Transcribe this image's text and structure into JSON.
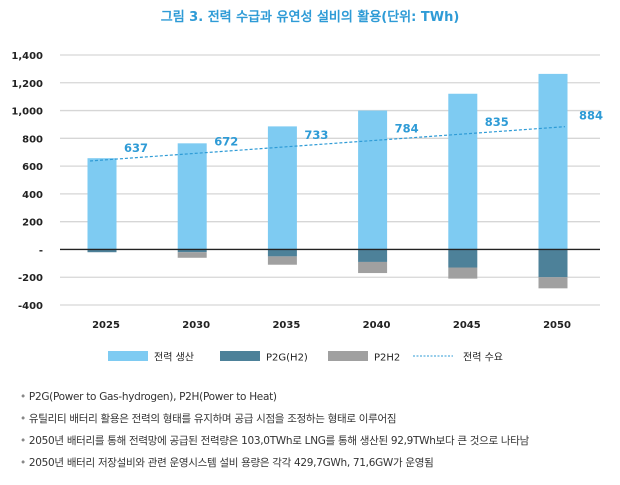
{
  "chart_data": {
    "type": "bar",
    "title": "그림 3. 전력 수급과 유연성 설비의 활용(단위: TWh)",
    "xlabel": "",
    "ylabel": "",
    "ylim": [
      -400,
      1400
    ],
    "yticks": [
      1400,
      1200,
      1000,
      800,
      600,
      400,
      200,
      0,
      -200,
      -400
    ],
    "ytick_labels": [
      "1,400",
      "1,200",
      "1,000",
      "800",
      "600",
      "400",
      "200",
      "-",
      "-200",
      "-400"
    ],
    "grid": true,
    "categories": [
      "2025",
      "2030",
      "2035",
      "2040",
      "2045",
      "2050"
    ],
    "series": [
      {
        "name": "전력 생산",
        "kind": "bar",
        "color": "#7ecbf2",
        "values": [
          657,
          764,
          886,
          1000,
          1121,
          1264
        ]
      },
      {
        "name": "P2G(H2)",
        "kind": "bar-negative-stacked",
        "color": "#4d8199",
        "values": [
          -20,
          -20,
          -50,
          -90,
          -130,
          -200
        ]
      },
      {
        "name": "P2H2",
        "kind": "bar-negative-stacked",
        "color": "#a0a0a0",
        "values": [
          0,
          -40,
          -60,
          -80,
          -80,
          -80
        ]
      },
      {
        "name": "전력 수요",
        "kind": "line-dashed",
        "color": "#2e9bd6",
        "values": [
          637,
          672,
          733,
          784,
          835,
          884
        ]
      }
    ],
    "data_labels": [
      "637",
      "672",
      "733",
      "784",
      "835",
      "884"
    ],
    "legend": [
      "전력 생산",
      "P2G(H2)",
      "P2H2",
      "전력 수요"
    ],
    "legend_position": "bottom"
  },
  "notes": [
    "P2G(Power to Gas-hydrogen), P2H(Power to Heat)",
    "유틸리티 배터리 활용은 전력의 형태를 유지하며 공급 시점을 조정하는 형태로 이루어짐",
    "2050년 배터리를 통해 전력망에 공급된 전력량은 103,0TWh로 LNG를 통해 생산된 92,9TWh보다 큰 것으로 나타남",
    "2050년 배터리 저장설비와 관련 운영시스템 설비 용량은 각각 429,7GWh, 71,6GW가 운영됨"
  ],
  "bullet": "•"
}
